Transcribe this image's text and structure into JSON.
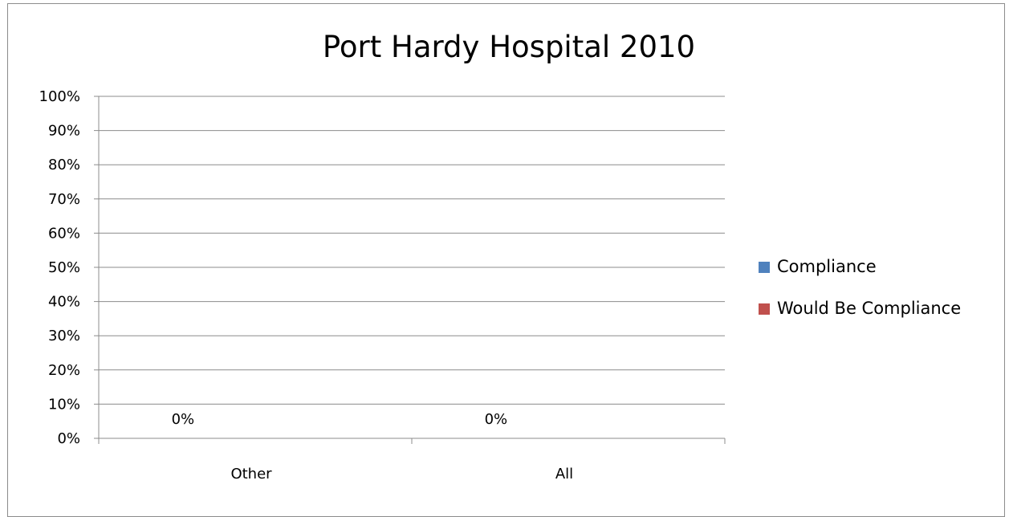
{
  "chart_data": {
    "type": "bar",
    "title": "Port Hardy Hospital 2010",
    "xlabel": "",
    "ylabel": "",
    "categories": [
      "Other",
      "All"
    ],
    "series": [
      {
        "name": "Compliance",
        "values": [
          0,
          0
        ],
        "data_labels": [
          "0%",
          "0%"
        ],
        "color": "#4f81bd"
      },
      {
        "name": "Would Be Compliance",
        "values": [
          0,
          0
        ],
        "data_labels": [
          "",
          ""
        ],
        "color": "#c0504d"
      }
    ],
    "ylim": [
      0,
      100
    ],
    "y_ticks": [
      0,
      10,
      20,
      30,
      40,
      50,
      60,
      70,
      80,
      90,
      100
    ],
    "y_tick_labels": [
      "0%",
      "10%",
      "20%",
      "30%",
      "40%",
      "50%",
      "60%",
      "70%",
      "80%",
      "90%",
      "100%"
    ],
    "y_unit": "percent",
    "grid": true,
    "legend_position": "right"
  }
}
